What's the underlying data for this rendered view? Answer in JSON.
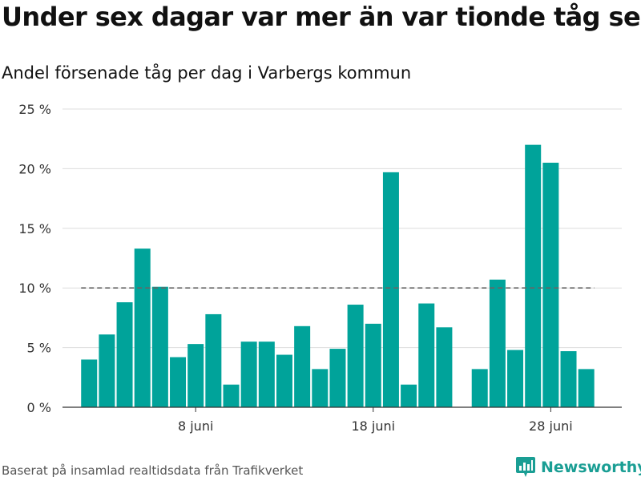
{
  "title": "Under sex dagar var mer än var tionde tåg sent",
  "subtitle": "Andel försenade tåg per dag i Varbergs kommun",
  "source": "Baserat på insamlad realtidsdata från Trafikverket",
  "brand": "Newsworthy",
  "colors": {
    "bar": "#00a39a",
    "grid": "#dddddd",
    "reference": "#666666",
    "brand": "#1a9e94"
  },
  "chart_data": {
    "type": "bar",
    "x": [
      2,
      3,
      4,
      5,
      6,
      7,
      8,
      9,
      10,
      11,
      12,
      13,
      14,
      15,
      16,
      17,
      18,
      19,
      20,
      21,
      22,
      23,
      24,
      25,
      26,
      27,
      28,
      29,
      30
    ],
    "values": [
      4.0,
      6.1,
      8.8,
      13.3,
      10.1,
      4.2,
      5.3,
      7.8,
      1.9,
      5.5,
      5.5,
      4.4,
      6.8,
      3.2,
      4.9,
      8.6,
      7.0,
      19.7,
      1.9,
      8.7,
      6.7,
      null,
      3.2,
      10.7,
      4.8,
      22.0,
      20.5,
      4.7,
      3.2
    ],
    "ylim": [
      0,
      25
    ],
    "yticks": [
      0,
      5,
      10,
      15,
      20,
      25
    ],
    "ytick_labels": [
      "0 %",
      "5 %",
      "10 %",
      "15 %",
      "20 %",
      "25 %"
    ],
    "xticks": [
      8,
      18,
      28
    ],
    "xtick_labels": [
      "8 juni",
      "18 juni",
      "28 juni"
    ],
    "reference_line": 10,
    "grid": true
  }
}
